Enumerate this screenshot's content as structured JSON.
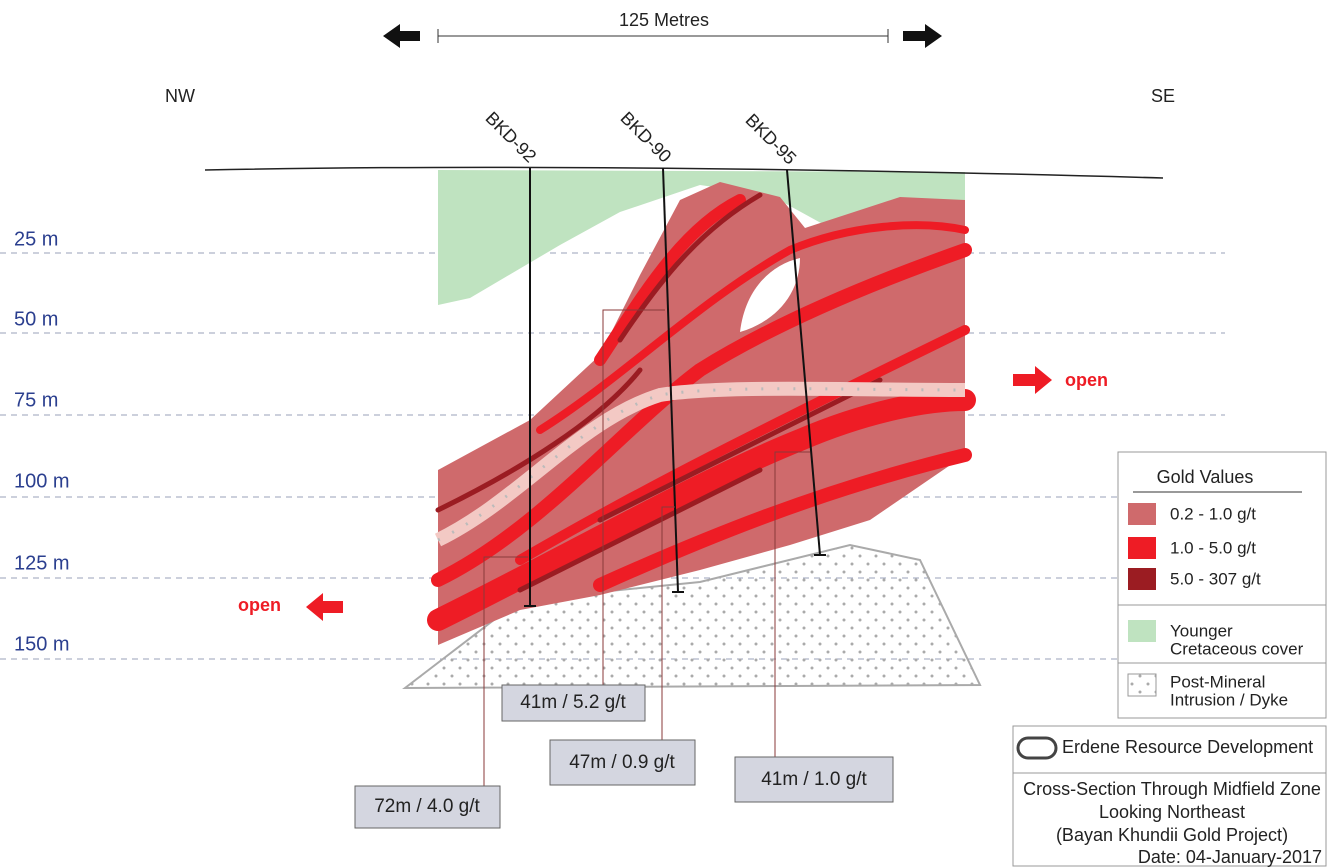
{
  "scale_bar": {
    "label": "125 Metres"
  },
  "directions": {
    "left": "NW",
    "right": "SE"
  },
  "drill_holes": [
    "BKD-92",
    "BKD-90",
    "BKD-95"
  ],
  "depths": [
    "25 m",
    "50 m",
    "75 m",
    "100 m",
    "125 m",
    "150 m"
  ],
  "open_labels": [
    "open",
    "open"
  ],
  "intercepts": [
    "41m / 5.2 g/t",
    "47m / 0.9 g/t",
    "41m / 1.0 g/t",
    "72m / 4.0 g/t"
  ],
  "legend": {
    "title": "Gold Values",
    "gold_values": [
      "0.2 - 1.0 g/t",
      "1.0 - 5.0 g/t",
      "5.0 - 307 g/t"
    ],
    "other": [
      {
        "lines": [
          "Younger",
          "Cretaceous cover"
        ]
      },
      {
        "lines": [
          "Post-Mineral",
          "Intrusion / Dyke"
        ]
      }
    ]
  },
  "title_block": {
    "company": "Erdene Resource Development",
    "title_lines": [
      "Cross-Section Through Midfield Zone",
      "Looking Northeast",
      "(Bayan Khundii Gold Project)"
    ],
    "date": "Date: 04-January-2017"
  }
}
